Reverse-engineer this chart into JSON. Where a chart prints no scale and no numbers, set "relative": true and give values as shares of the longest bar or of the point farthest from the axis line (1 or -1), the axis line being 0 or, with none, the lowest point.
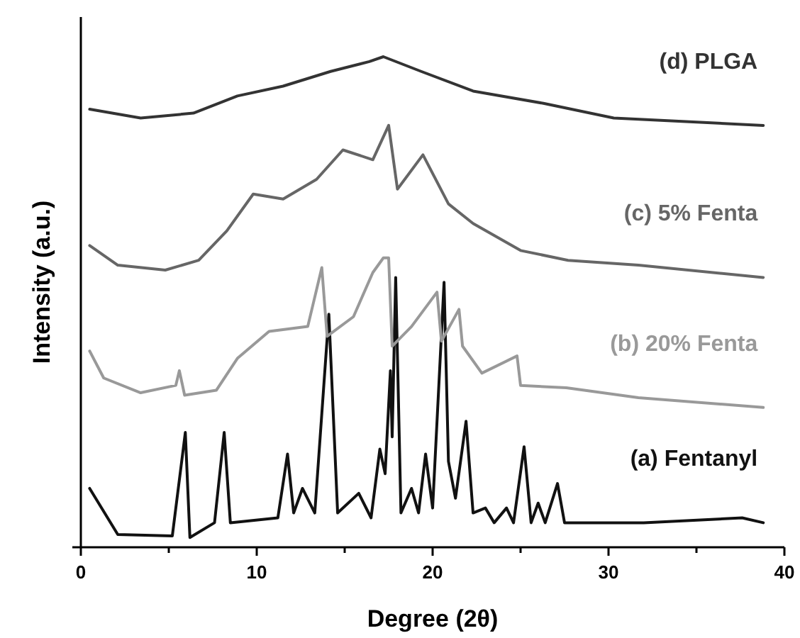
{
  "chart_data": {
    "type": "line",
    "relative": true,
    "xlabel": "Degree (2θ)",
    "ylabel": "Intensity (a.u.)",
    "xlim": [
      0,
      40
    ],
    "xticks": [
      0,
      {
        "value": 5,
        "label": null
      },
      10,
      {
        "value": 15,
        "label": null
      },
      20,
      {
        "value": 25,
        "label": null
      },
      30,
      {
        "value": 35,
        "label": null
      },
      40
    ],
    "grid": false,
    "legend": false,
    "marker": "none",
    "line_style": "solid",
    "series": [
      {
        "name": "(a) Fentanyl",
        "color": "#111111",
        "x": [
          0.5,
          2.1,
          5.2,
          5.94,
          6.2,
          7.6,
          8.15,
          8.5,
          11.2,
          11.75,
          12.1,
          12.6,
          13.3,
          14.1,
          14.6,
          15.8,
          16.5,
          17.0,
          17.3,
          17.6,
          17.7,
          17.9,
          18.2,
          18.8,
          19.2,
          19.6,
          20.0,
          20.65,
          20.9,
          21.3,
          21.9,
          22.3,
          23.0,
          23.5,
          24.2,
          24.6,
          25.2,
          25.6,
          26.0,
          26.4,
          27.1,
          27.5,
          32.0,
          37.6,
          38.8
        ],
        "values": [
          0.12,
          0.026,
          0.023,
          0.234,
          0.02,
          0.05,
          0.234,
          0.05,
          0.06,
          0.19,
          0.07,
          0.12,
          0.07,
          0.475,
          0.07,
          0.11,
          0.06,
          0.2,
          0.15,
          0.36,
          0.225,
          0.55,
          0.07,
          0.12,
          0.07,
          0.19,
          0.08,
          0.54,
          0.175,
          0.1,
          0.257,
          0.07,
          0.08,
          0.05,
          0.08,
          0.05,
          0.205,
          0.05,
          0.09,
          0.05,
          0.13,
          0.05,
          0.05,
          0.06,
          0.05
        ]
      },
      {
        "name": "(b) 20% Fenta",
        "color": "#999999",
        "x": [
          0.5,
          1.3,
          3.4,
          5.4,
          5.6,
          5.9,
          7.7,
          8.9,
          10.7,
          12.9,
          13.7,
          14.0,
          15.5,
          16.6,
          17.2,
          17.5,
          17.7,
          18.8,
          20.25,
          20.5,
          21.5,
          21.7,
          22.8,
          24.8,
          25.0,
          27.6,
          31.7,
          38.8
        ],
        "values": [
          0.4,
          0.345,
          0.315,
          0.33,
          0.36,
          0.31,
          0.32,
          0.385,
          0.44,
          0.45,
          0.57,
          0.43,
          0.47,
          0.56,
          0.59,
          0.59,
          0.41,
          0.45,
          0.52,
          0.42,
          0.485,
          0.41,
          0.355,
          0.39,
          0.33,
          0.325,
          0.305,
          0.285
        ]
      },
      {
        "name": "(c) 5% Fenta",
        "color": "#666666",
        "x": [
          0.5,
          2.1,
          4.8,
          6.7,
          8.3,
          9.8,
          11.5,
          13.4,
          14.9,
          16.6,
          17.5,
          18.0,
          19.45,
          20.9,
          22.3,
          25.0,
          27.7,
          31.7,
          38.8
        ],
        "values": [
          0.615,
          0.575,
          0.565,
          0.585,
          0.645,
          0.72,
          0.71,
          0.75,
          0.81,
          0.79,
          0.86,
          0.73,
          0.8,
          0.7,
          0.66,
          0.605,
          0.585,
          0.575,
          0.55
        ]
      },
      {
        "name": "(d) PLGA",
        "color": "#333333",
        "x": [
          0.5,
          3.4,
          6.4,
          8.9,
          11.5,
          14.2,
          16.4,
          17.2,
          19.35,
          22.3,
          26.3,
          30.3,
          38.8
        ],
        "values": [
          0.893,
          0.875,
          0.885,
          0.92,
          0.94,
          0.97,
          0.99,
          1,
          0.97,
          0.93,
          0.905,
          0.875,
          0.86
        ]
      }
    ]
  }
}
